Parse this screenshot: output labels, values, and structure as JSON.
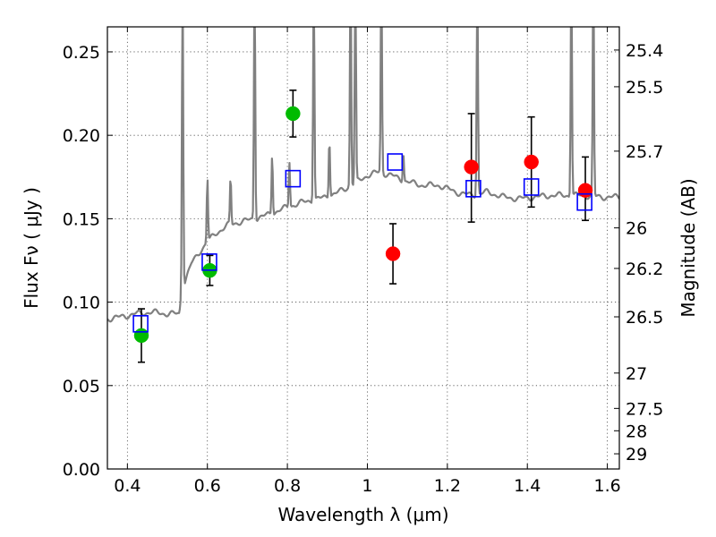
{
  "chart_data": {
    "type": "scatter",
    "xlabel": "Wavelength  λ (μm)",
    "ylabel": "Flux  Fν  ( μJy )",
    "ylabel_right": "Magnitude (AB)",
    "xlim": [
      0.35,
      1.63
    ],
    "ylim": [
      0.0,
      0.265
    ],
    "x_ticks": [
      0.4,
      0.6,
      0.8,
      1.0,
      1.2,
      1.4,
      1.6
    ],
    "x_tick_labels": [
      "0.4",
      "0.6",
      "0.8",
      "1",
      "1.2",
      "1.4",
      "1.6"
    ],
    "y_ticks": [
      0.0,
      0.05,
      0.1,
      0.15,
      0.2,
      0.25
    ],
    "y_tick_labels": [
      "0.00",
      "0.05",
      "0.10",
      "0.15",
      "0.20",
      "0.25"
    ],
    "right_ticks": [
      {
        "flux": 0.2511,
        "label": "25.4"
      },
      {
        "flux": 0.2291,
        "label": "25.5"
      },
      {
        "flux": 0.1905,
        "label": "25.7"
      },
      {
        "flux": 0.1445,
        "label": "26"
      },
      {
        "flux": 0.1202,
        "label": "26.2"
      },
      {
        "flux": 0.0912,
        "label": "26.5"
      },
      {
        "flux": 0.0575,
        "label": "27"
      },
      {
        "flux": 0.0363,
        "label": "27.5"
      },
      {
        "flux": 0.0229,
        "label": "28"
      },
      {
        "flux": 0.0091,
        "label": "29"
      }
    ],
    "grid": true,
    "colors": {
      "sed": "#808080",
      "green": "#00bb00",
      "red": "#ff0000",
      "box": "#0000ff",
      "errorbar": "#000000"
    },
    "series": [
      {
        "marker": "circle",
        "color": "green",
        "points": [
          {
            "x": 0.435,
            "y": 0.08,
            "err": [
              0.016,
              0.016
            ]
          },
          {
            "x": 0.606,
            "y": 0.119,
            "err": [
              0.009,
              0.009
            ]
          },
          {
            "x": 0.814,
            "y": 0.213,
            "err": [
              0.014,
              0.014
            ]
          }
        ]
      },
      {
        "marker": "circle",
        "color": "red",
        "points": [
          {
            "x": 1.064,
            "y": 0.129,
            "err": [
              0.018,
              0.018
            ]
          },
          {
            "x": 1.26,
            "y": 0.181,
            "err": [
              0.033,
              0.032
            ]
          },
          {
            "x": 1.41,
            "y": 0.184,
            "err": [
              0.027,
              0.027
            ]
          },
          {
            "x": 1.545,
            "y": 0.167,
            "err": [
              0.018,
              0.02
            ]
          }
        ]
      },
      {
        "marker": "square",
        "color": "box",
        "points": [
          {
            "x": 0.433,
            "y": 0.087
          },
          {
            "x": 0.605,
            "y": 0.124
          },
          {
            "x": 0.814,
            "y": 0.174
          },
          {
            "x": 1.069,
            "y": 0.184
          },
          {
            "x": 1.265,
            "y": 0.168
          },
          {
            "x": 1.41,
            "y": 0.169
          },
          {
            "x": 1.543,
            "y": 0.16
          }
        ]
      }
    ],
    "sed_continuum": [
      [
        0.35,
        0.09
      ],
      [
        0.38,
        0.091
      ],
      [
        0.42,
        0.093
      ],
      [
        0.46,
        0.094
      ],
      [
        0.5,
        0.093
      ],
      [
        0.53,
        0.093
      ],
      [
        0.534,
        0.103
      ],
      [
        0.54,
        0.11
      ],
      [
        0.56,
        0.123
      ],
      [
        0.58,
        0.13
      ],
      [
        0.6,
        0.136
      ],
      [
        0.62,
        0.141
      ],
      [
        0.65,
        0.146
      ],
      [
        0.68,
        0.148
      ],
      [
        0.72,
        0.15
      ],
      [
        0.76,
        0.153
      ],
      [
        0.8,
        0.157
      ],
      [
        0.84,
        0.16
      ],
      [
        0.88,
        0.162
      ],
      [
        0.92,
        0.165
      ],
      [
        0.96,
        0.17
      ],
      [
        1.0,
        0.176
      ],
      [
        1.03,
        0.178
      ],
      [
        1.06,
        0.176
      ],
      [
        1.1,
        0.172
      ],
      [
        1.14,
        0.17
      ],
      [
        1.18,
        0.17
      ],
      [
        1.22,
        0.166
      ],
      [
        1.26,
        0.164
      ],
      [
        1.3,
        0.166
      ],
      [
        1.34,
        0.163
      ],
      [
        1.38,
        0.162
      ],
      [
        1.42,
        0.163
      ],
      [
        1.46,
        0.164
      ],
      [
        1.5,
        0.164
      ],
      [
        1.54,
        0.164
      ],
      [
        1.58,
        0.163
      ],
      [
        1.63,
        0.163
      ]
    ],
    "sed_lines": [
      {
        "x": 0.538,
        "peak": 0.3
      },
      {
        "x": 0.6,
        "peak": 0.175
      },
      {
        "x": 0.658,
        "peak": 0.175
      },
      {
        "x": 0.718,
        "peak": 0.3
      },
      {
        "x": 0.762,
        "peak": 0.19
      },
      {
        "x": 0.805,
        "peak": 0.185
      },
      {
        "x": 0.866,
        "peak": 0.3
      },
      {
        "x": 0.905,
        "peak": 0.2
      },
      {
        "x": 0.958,
        "peak": 0.3
      },
      {
        "x": 0.97,
        "peak": 0.3
      },
      {
        "x": 1.035,
        "peak": 0.3
      },
      {
        "x": 1.09,
        "peak": 0.19
      },
      {
        "x": 1.275,
        "peak": 0.3
      },
      {
        "x": 1.51,
        "peak": 0.3
      },
      {
        "x": 1.565,
        "peak": 0.3
      }
    ]
  }
}
